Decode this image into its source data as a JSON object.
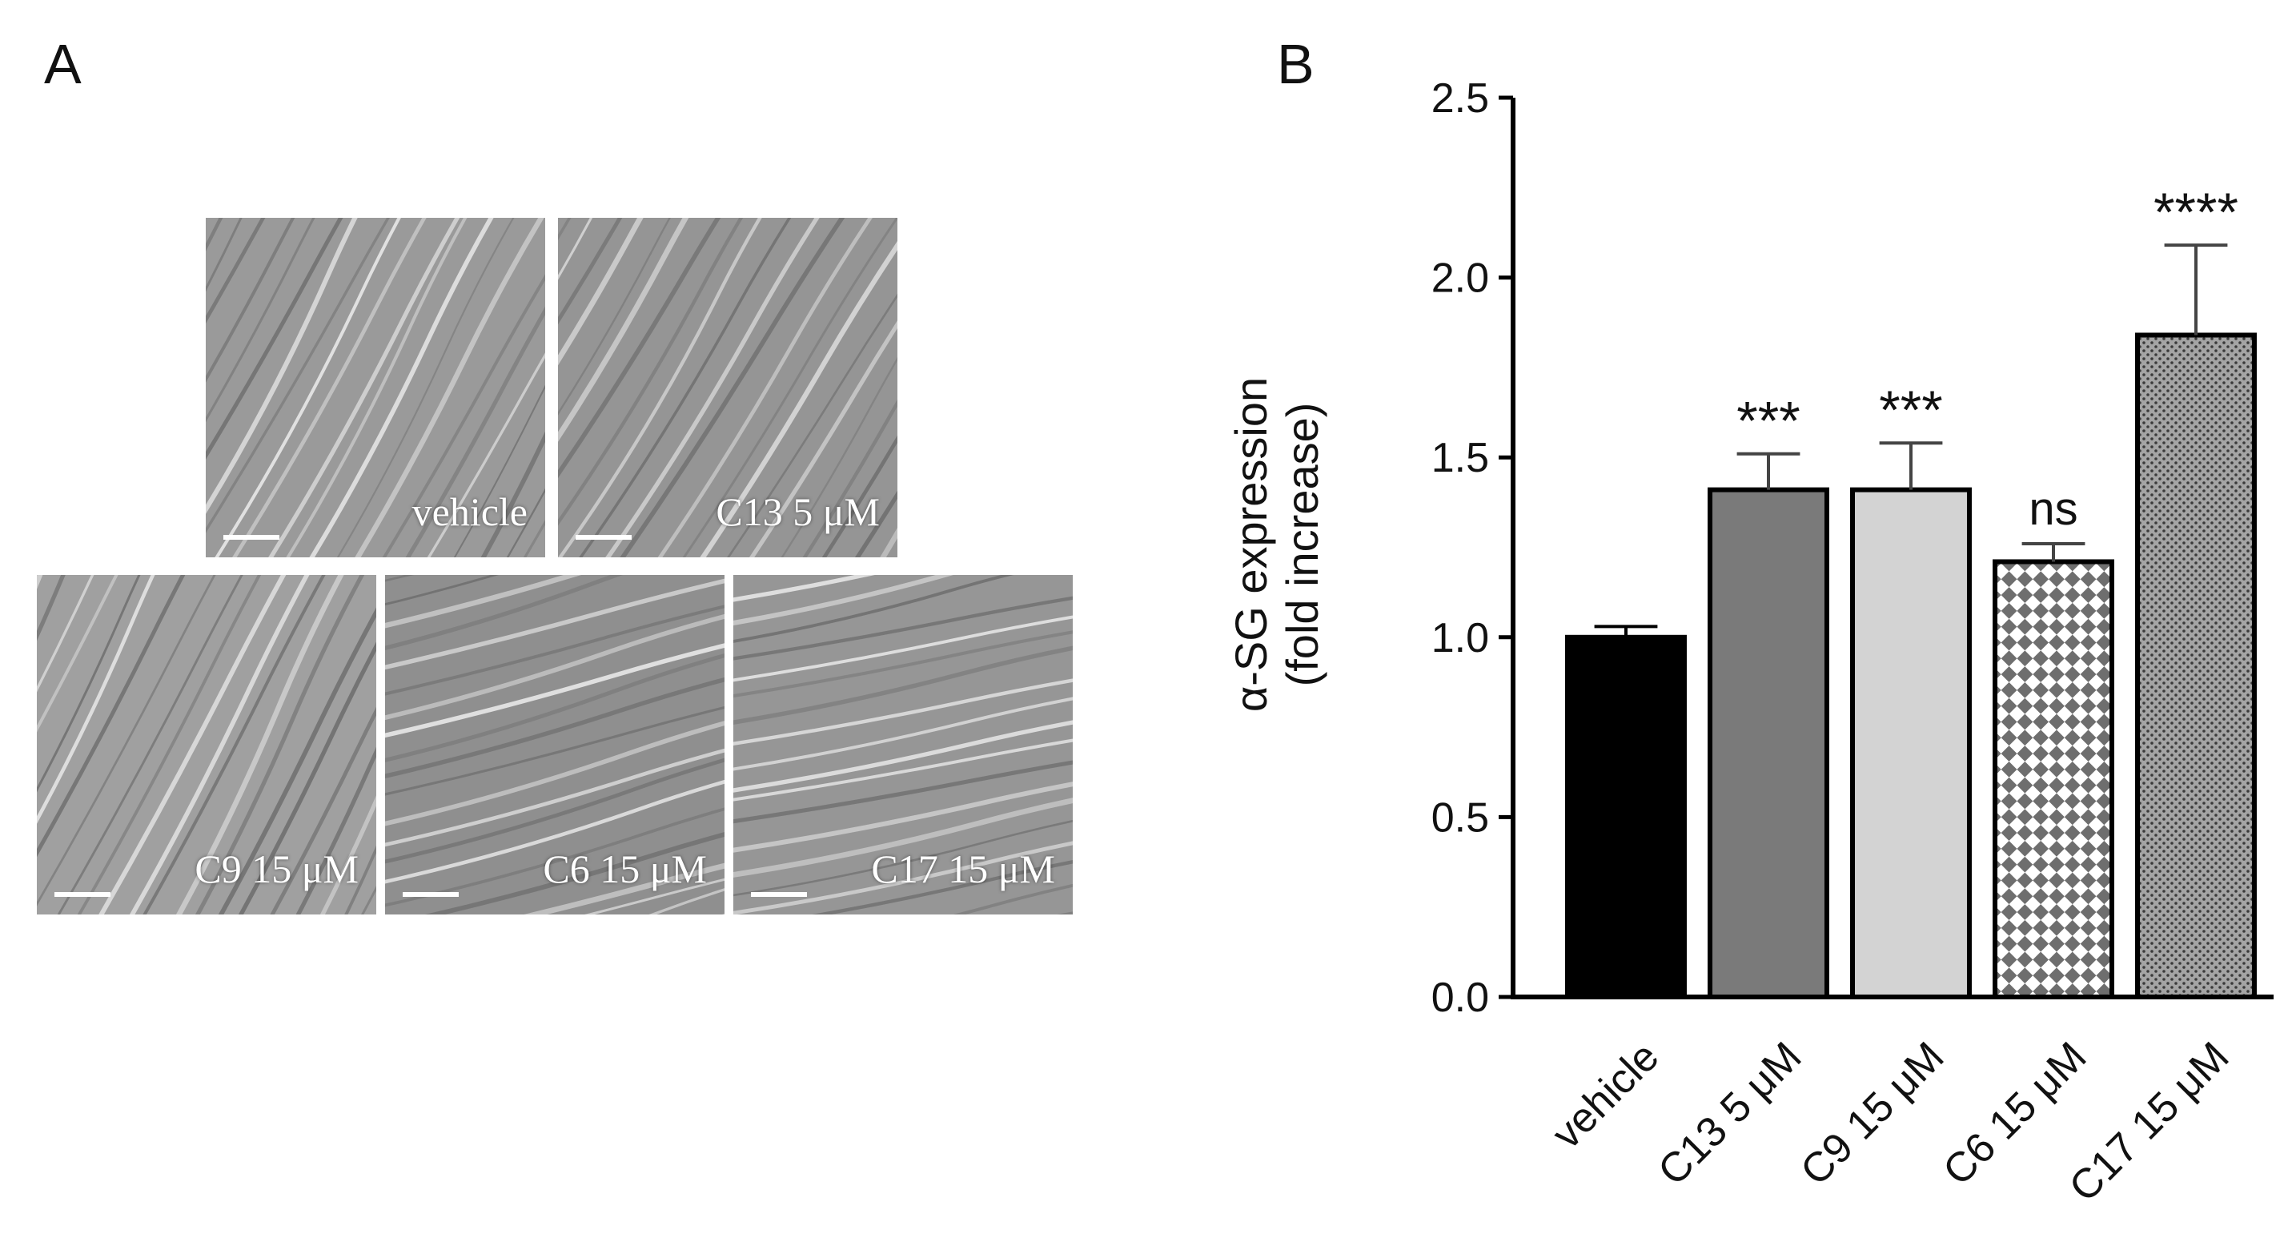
{
  "panels": {
    "a": "A",
    "b": "B"
  },
  "micrographs": [
    {
      "label": "vehicle"
    },
    {
      "label": "C13 5 μM"
    },
    {
      "label": "C9 15 μM"
    },
    {
      "label": "C6 15 μM"
    },
    {
      "label": "C17 15 μM"
    }
  ],
  "chart_data": {
    "type": "bar",
    "categories": [
      "vehicle",
      "C13 5 μM",
      "C9 15 μM",
      "C6 15 μM",
      "C17 15 μM"
    ],
    "values": [
      1.0,
      1.41,
      1.41,
      1.21,
      1.84
    ],
    "errors": [
      0.03,
      0.1,
      0.13,
      0.05,
      0.25
    ],
    "significance": [
      "",
      "***",
      "***",
      "ns",
      "****"
    ],
    "fills": [
      "#000000",
      "#7a7a7a",
      "#d3d3d3",
      "checker",
      "dotted"
    ],
    "ylabel_line1": "α-SG expression",
    "ylabel_line2": "(fold increase)",
    "ylim": [
      0,
      2.5
    ],
    "yticks": [
      "0.0",
      "0.5",
      "1.0",
      "1.5",
      "2.0",
      "2.5"
    ],
    "grid": false,
    "legend": false
  }
}
